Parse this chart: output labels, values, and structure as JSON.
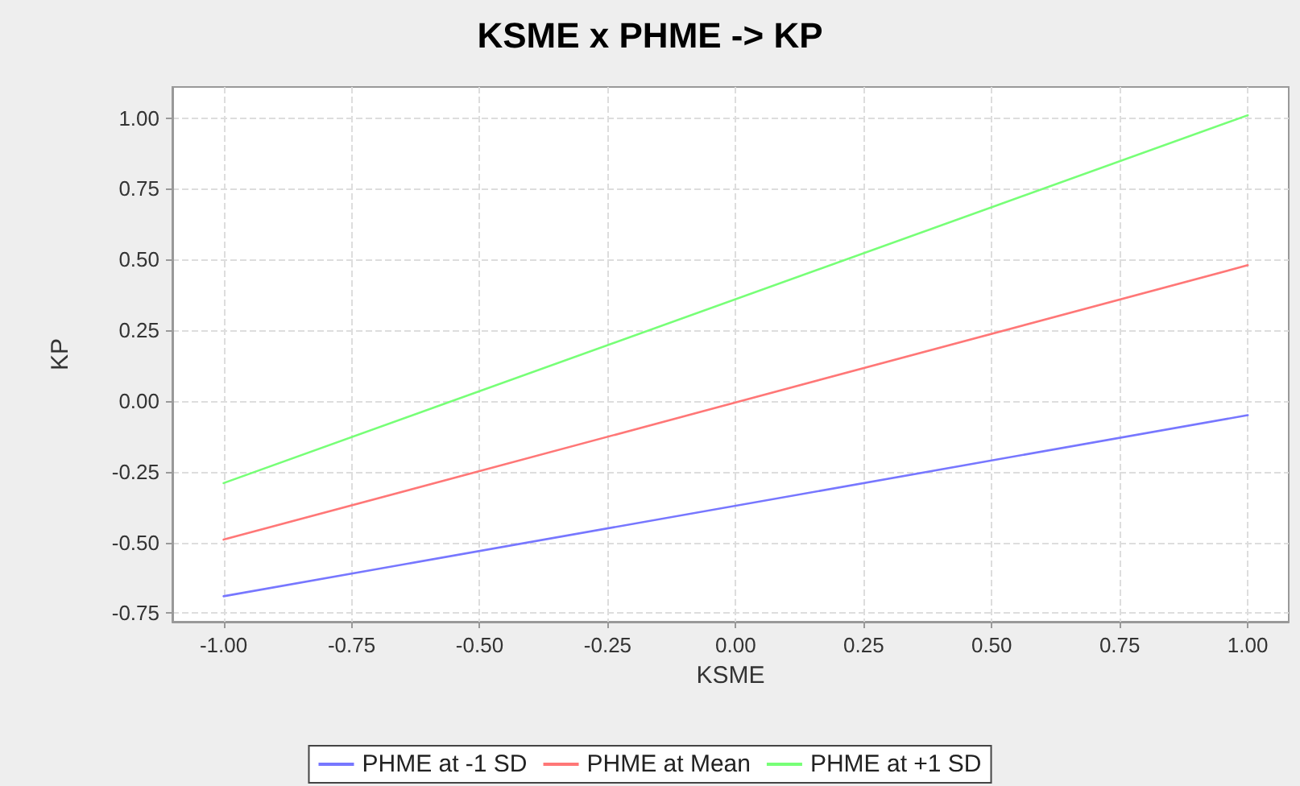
{
  "chart_data": {
    "type": "line",
    "title": "KSME x PHME -> KP",
    "xlabel": "KSME",
    "ylabel": "KP",
    "x": [
      -1,
      1
    ],
    "series": [
      {
        "name": "PHME at -1 SD",
        "color": "#7777ff",
        "values": [
          -0.69,
          -0.05
        ]
      },
      {
        "name": "PHME at Mean",
        "color": "#ff7777",
        "values": [
          -0.49,
          0.48
        ]
      },
      {
        "name": "PHME at +1 SD",
        "color": "#77ff77",
        "values": [
          -0.29,
          1.01
        ]
      }
    ],
    "xlim": [
      -1.1,
      1.08
    ],
    "xticks": [
      {
        "value": -1,
        "label": "-1.00"
      },
      -0.75,
      {
        "value": -0.5,
        "label": "-0.50"
      },
      -0.25,
      {
        "value": 0,
        "label": "0.00"
      },
      0.25,
      {
        "value": 0.5,
        "label": "0.50"
      },
      0.75,
      {
        "value": 1,
        "label": "1.00"
      }
    ],
    "ylim": [
      -0.78,
      1.11
    ],
    "yticks": [
      -0.75,
      {
        "value": -0.5,
        "label": "-0.50"
      },
      -0.25,
      {
        "value": 0,
        "label": "0.00"
      },
      0.25,
      {
        "value": 0.5,
        "label": "0.50"
      },
      0.75,
      {
        "value": 1,
        "label": "1.00"
      }
    ],
    "grid": true,
    "legend": "bottom",
    "marker": "none",
    "line_style": "solid"
  }
}
